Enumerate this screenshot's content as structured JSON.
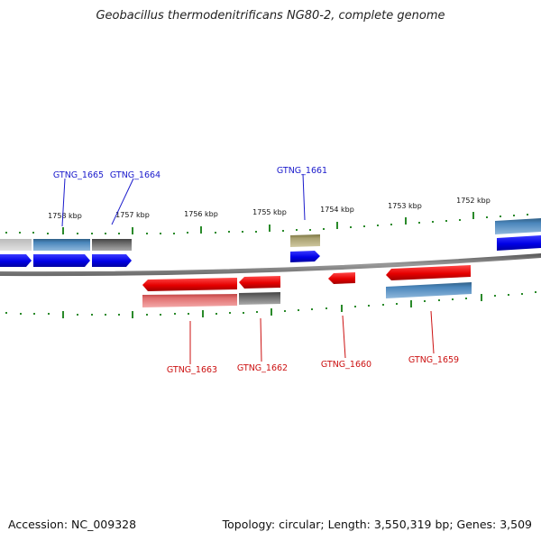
{
  "title": "Geobacillus thermodenitrificans NG80-2, complete genome",
  "footer": {
    "accession": "Accession: NC_009328",
    "summary": "Topology: circular; Length: 3,550,319 bp; Genes: 3,509"
  },
  "scale_labels": [
    "1758 kbp",
    "1757 kbp",
    "1756 kbp",
    "1755 kbp",
    "1754 kbp",
    "1753 kbp",
    "1752 kbp"
  ],
  "gene_labels": {
    "top": [
      "GTNG_1665",
      "GTNG_1664",
      "GTNG_1661"
    ],
    "bottom": [
      "GTNG_1663",
      "GTNG_1662",
      "GTNG_1660",
      "GTNG_1659"
    ]
  },
  "colors": {
    "forward_gene": "#0000ee",
    "reverse_gene": "#ee1111",
    "tick": "#2a8a2a",
    "backbone": "#888888",
    "label_top": "#1a1acc",
    "label_bottom": "#cc1111"
  }
}
